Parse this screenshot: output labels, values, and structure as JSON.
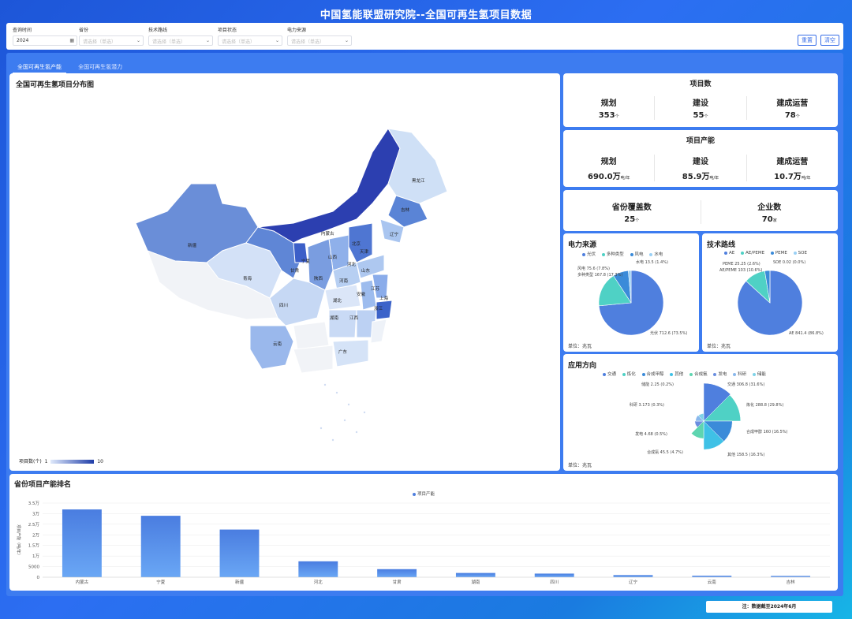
{
  "title": "中国氢能联盟研究院--全国可再生氢项目数据",
  "filters": [
    {
      "label": "查询时间",
      "value": "2024",
      "placeholder": "",
      "icon": "calendar-icon"
    },
    {
      "label": "省份",
      "value": "",
      "placeholder": "请选择（单选）"
    },
    {
      "label": "技术路线",
      "value": "",
      "placeholder": "请选择（单选）"
    },
    {
      "label": "项目状态",
      "value": "",
      "placeholder": "请选择（单选）"
    },
    {
      "label": "电力来源",
      "value": "",
      "placeholder": "请选择（单选）"
    }
  ],
  "buttons": {
    "reset": "重置",
    "clear": "清空"
  },
  "tabs": [
    {
      "label": "全国可再生氢产能",
      "active": true
    },
    {
      "label": "全国可再生氢潜力",
      "active": false
    }
  ],
  "map": {
    "title": "全国可再生氢项目分布图",
    "legend_label": "项目数(个)",
    "legend_min": "1",
    "legend_max": "10",
    "color_low": "#dfe9fb",
    "color_high": "#1f3da8",
    "provinces": [
      "黑龙江",
      "吉林",
      "辽宁",
      "内蒙古",
      "北京",
      "天津",
      "河北",
      "山西",
      "山东",
      "宁夏",
      "甘肃",
      "陕西",
      "河南",
      "江苏",
      "上海",
      "安徽",
      "浙江",
      "湖北",
      "江西",
      "湖南",
      "四川",
      "云南",
      "青海",
      "新疆",
      "广东"
    ]
  },
  "project_count": {
    "title": "项目数",
    "items": [
      {
        "label": "规划",
        "value": "353",
        "unit": "个"
      },
      {
        "label": "建设",
        "value": "55",
        "unit": "个"
      },
      {
        "label": "建成运营",
        "value": "78",
        "unit": "个"
      }
    ]
  },
  "project_capacity": {
    "title": "项目产能",
    "items": [
      {
        "label": "规划",
        "value": "690.0万",
        "unit": "吨/年"
      },
      {
        "label": "建设",
        "value": "85.9万",
        "unit": "吨/年"
      },
      {
        "label": "建成运营",
        "value": "10.7万",
        "unit": "吨/年"
      }
    ]
  },
  "coverage": {
    "label": "省份覆盖数",
    "value": "25",
    "unit": "个"
  },
  "companies": {
    "label": "企业数",
    "value": "70",
    "unit": "家"
  },
  "power_source": {
    "title": "电力来源",
    "unit_note": "单位：兆瓦",
    "legend": [
      "光伏",
      "多种类型",
      "风电",
      "水电"
    ],
    "colors": [
      "#4f7fde",
      "#4fd1c5",
      "#3b8bd9",
      "#9ad0f5"
    ],
    "values": [
      712.6,
      167.8,
      75.6,
      13.5
    ],
    "labels": [
      "光伏 712.6 (73.5%)",
      "多种类型 167.8 (17.3%)",
      "风电 75.6 (7.8%)",
      "水电 13.5 (1.4%)"
    ]
  },
  "tech_route": {
    "title": "技术路线",
    "unit_note": "单位：兆瓦",
    "legend": [
      "AE",
      "AE/PEME",
      "PEME",
      "SOE"
    ],
    "colors": [
      "#4f7fde",
      "#4fd1c5",
      "#3b8bd9",
      "#9ad0f5"
    ],
    "values": [
      841.4,
      103,
      25.25,
      0.02
    ],
    "labels": [
      "AE 841.4 (86.8%)",
      "AE/PEME 103 (10.6%)",
      "PEME 25.25 (2.6%)",
      "SOE 0.02 (0.0%)"
    ]
  },
  "application": {
    "title": "应用方向",
    "unit_note": "单位：兆瓦",
    "legend": [
      "交通",
      "炼化",
      "合成甲醇",
      "其他",
      "合成氨",
      "发电",
      "科研",
      "储能"
    ],
    "colors": [
      "#4f7fde",
      "#4fd1c5",
      "#3b8bd9",
      "#3fc1e6",
      "#5ed5b0",
      "#6a8ee0",
      "#89b8ec",
      "#7fd3e8"
    ],
    "values": [
      306.8,
      288.8,
      160,
      158.5,
      45.5,
      4.68,
      3.173,
      2.25
    ],
    "labels": [
      "交通 306.8 (31.6%)",
      "炼化 288.8 (29.8%)",
      "合成甲醇 160 (16.5%)",
      "其他 158.5 (16.3%)",
      "合成氨 45.5 (4.7%)",
      "发电 4.68 (0.5%)",
      "科研 3.173 (0.3%)",
      "储能 2.25 (0.2%)"
    ]
  },
  "ranking": {
    "title": "省份项目产能排名",
    "legend": "项目产能",
    "ylabel": "项目产能（吨/年）",
    "chart_data": {
      "type": "bar",
      "categories": [
        "内蒙古",
        "宁夏",
        "新疆",
        "河北",
        "甘肃",
        "湖南",
        "四川",
        "辽宁",
        "云南",
        "吉林"
      ],
      "values": [
        32000,
        29000,
        22500,
        7500,
        3800,
        2000,
        1700,
        1000,
        700,
        600
      ],
      "ylim": [
        0,
        35000
      ],
      "ytick_labels": [
        "0",
        "5000",
        "1万",
        "1.5万",
        "2万",
        "2.5万",
        "3万",
        "3.5万"
      ]
    }
  },
  "footnote": "注：数据截至2024年6月"
}
